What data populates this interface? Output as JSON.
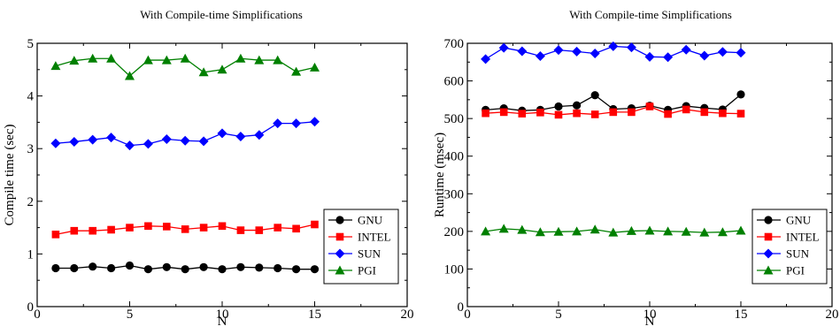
{
  "chart_data": [
    {
      "type": "line",
      "title": "With Compile-time Simplifications",
      "xlabel": "N",
      "ylabel": "Compile time (sec)",
      "xlim": [
        0,
        20
      ],
      "ylim": [
        0,
        5
      ],
      "xticks": [
        0,
        5,
        10,
        15,
        20
      ],
      "yticks": [
        0,
        1,
        2,
        3,
        4,
        5
      ],
      "grid": false,
      "legend_position": "bottom-right",
      "x": [
        1,
        2,
        3,
        4,
        5,
        6,
        7,
        8,
        9,
        10,
        11,
        12,
        13,
        14,
        15
      ],
      "series": [
        {
          "name": "GNU",
          "color": "#000000",
          "marker": "circle",
          "values": [
            0.73,
            0.73,
            0.76,
            0.73,
            0.78,
            0.71,
            0.75,
            0.71,
            0.75,
            0.71,
            0.75,
            0.74,
            0.73,
            0.71,
            0.71
          ]
        },
        {
          "name": "INTEL",
          "color": "#ff0000",
          "marker": "square",
          "values": [
            1.37,
            1.44,
            1.44,
            1.46,
            1.5,
            1.53,
            1.52,
            1.47,
            1.5,
            1.53,
            1.45,
            1.45,
            1.5,
            1.48,
            1.56
          ]
        },
        {
          "name": "SUN",
          "color": "#0000ff",
          "marker": "diamond",
          "values": [
            3.1,
            3.13,
            3.17,
            3.21,
            3.06,
            3.09,
            3.18,
            3.15,
            3.14,
            3.29,
            3.23,
            3.26,
            3.48,
            3.48,
            3.51
          ]
        },
        {
          "name": "PGI",
          "color": "#008000",
          "marker": "triangle",
          "values": [
            4.57,
            4.67,
            4.71,
            4.71,
            4.38,
            4.68,
            4.68,
            4.71,
            4.45,
            4.5,
            4.71,
            4.68,
            4.68,
            4.46,
            4.54
          ]
        }
      ]
    },
    {
      "type": "line",
      "title": "With Compile-time Simplifications",
      "xlabel": "N",
      "ylabel": "Runtime (msec)",
      "xlim": [
        0,
        20
      ],
      "ylim": [
        0,
        700
      ],
      "xticks": [
        0,
        5,
        10,
        15,
        20
      ],
      "yticks": [
        0,
        100,
        200,
        300,
        400,
        500,
        600,
        700
      ],
      "grid": false,
      "legend_position": "bottom-right",
      "x": [
        1,
        2,
        3,
        4,
        5,
        6,
        7,
        8,
        9,
        10,
        11,
        12,
        13,
        14,
        15
      ],
      "series": [
        {
          "name": "GNU",
          "color": "#000000",
          "marker": "circle",
          "values": [
            523,
            527,
            521,
            523,
            532,
            535,
            562,
            525,
            527,
            534,
            523,
            533,
            528,
            524,
            564
          ]
        },
        {
          "name": "INTEL",
          "color": "#ff0000",
          "marker": "square",
          "values": [
            514,
            517,
            513,
            516,
            510,
            514,
            511,
            517,
            517,
            532,
            512,
            524,
            517,
            514,
            513
          ]
        },
        {
          "name": "SUN",
          "color": "#0000ff",
          "marker": "diamond",
          "values": [
            658,
            688,
            679,
            666,
            682,
            678,
            673,
            692,
            689,
            664,
            663,
            683,
            667,
            677,
            675
          ]
        },
        {
          "name": "PGI",
          "color": "#008000",
          "marker": "triangle",
          "values": [
            200,
            207,
            204,
            198,
            199,
            200,
            205,
            197,
            201,
            202,
            200,
            199,
            197,
            198,
            202
          ]
        }
      ]
    }
  ]
}
